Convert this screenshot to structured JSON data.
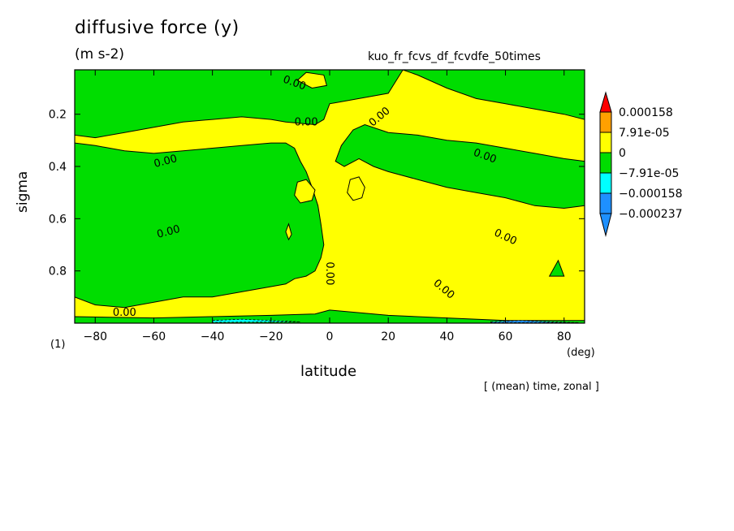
{
  "chart_data": {
    "type": "heatmap",
    "subtype": "filled-contour",
    "title": "diffusive force (y)",
    "units": "(m s-2)",
    "run_name": "kuo_fr_fcvs_df_fcvdfe_50times",
    "xlabel": "latitude",
    "x_unit": "(deg)",
    "ylabel": "sigma",
    "panel_index": "(1)",
    "note": "[ (mean) time, zonal ]",
    "xlim": [
      -87,
      87
    ],
    "ylim": [
      1.0,
      0.03
    ],
    "x_ticks": [
      -80,
      -60,
      -40,
      -20,
      0,
      20,
      40,
      60,
      80
    ],
    "x_tick_labels": [
      "−80",
      "−60",
      "−40",
      "−20",
      "0",
      "20",
      "40",
      "60",
      "80"
    ],
    "y_ticks": [
      0.2,
      0.4,
      0.6,
      0.8
    ],
    "y_tick_labels": [
      "0.2",
      "0.4",
      "0.6",
      "0.8"
    ],
    "contour_label": "0.00",
    "legend": {
      "placement": "right",
      "levels": [
        "0.000158",
        "7.91e-05",
        "0",
        "−7.91e-05",
        "−0.000158",
        "−0.000237"
      ],
      "colors": [
        "#ff0000",
        "#ffa000",
        "#ffff00",
        "#00dd00",
        "#00ffff",
        "#1e90ff"
      ]
    },
    "colors": {
      "positive_band": "#ffff00",
      "negative_band": "#00dd00",
      "cyan": "#00ffff",
      "blue": "#1e90ff"
    },
    "regions": {
      "green": [
        [
          [
            -87,
            0.03
          ],
          [
            -87,
            0.28
          ],
          [
            -80,
            0.29
          ],
          [
            -70,
            0.27
          ],
          [
            -60,
            0.25
          ],
          [
            -50,
            0.23
          ],
          [
            -40,
            0.22
          ],
          [
            -30,
            0.21
          ],
          [
            -20,
            0.22
          ],
          [
            -15,
            0.23
          ],
          [
            -10,
            0.235
          ],
          [
            -5,
            0.24
          ],
          [
            -2,
            0.22
          ],
          [
            0,
            0.16
          ],
          [
            5,
            0.15
          ],
          [
            10,
            0.14
          ],
          [
            20,
            0.12
          ],
          [
            25,
            0.03
          ]
        ],
        [
          [
            25,
            0.03
          ],
          [
            30,
            0.05
          ],
          [
            40,
            0.1
          ],
          [
            50,
            0.14
          ],
          [
            60,
            0.16
          ],
          [
            70,
            0.18
          ],
          [
            80,
            0.2
          ],
          [
            87,
            0.22
          ],
          [
            87,
            0.03
          ]
        ],
        [
          [
            -87,
            0.31
          ],
          [
            -80,
            0.32
          ],
          [
            -70,
            0.34
          ],
          [
            -60,
            0.35
          ],
          [
            -50,
            0.34
          ],
          [
            -40,
            0.33
          ],
          [
            -30,
            0.32
          ],
          [
            -20,
            0.31
          ],
          [
            -15,
            0.31
          ],
          [
            -12,
            0.33
          ],
          [
            -10,
            0.38
          ],
          [
            -8,
            0.42
          ],
          [
            -6,
            0.48
          ],
          [
            -4,
            0.55
          ],
          [
            -3,
            0.62
          ],
          [
            -2,
            0.7
          ],
          [
            -3,
            0.75
          ],
          [
            -5,
            0.8
          ],
          [
            -8,
            0.82
          ],
          [
            -12,
            0.83
          ],
          [
            -15,
            0.85
          ],
          [
            -20,
            0.86
          ],
          [
            -30,
            0.88
          ],
          [
            -40,
            0.9
          ],
          [
            -50,
            0.9
          ],
          [
            -60,
            0.92
          ],
          [
            -70,
            0.94
          ],
          [
            -80,
            0.93
          ],
          [
            -87,
            0.9
          ]
        ],
        [
          [
            2,
            0.38
          ],
          [
            4,
            0.32
          ],
          [
            8,
            0.26
          ],
          [
            12,
            0.24
          ],
          [
            20,
            0.27
          ],
          [
            30,
            0.28
          ],
          [
            40,
            0.3
          ],
          [
            50,
            0.31
          ],
          [
            60,
            0.33
          ],
          [
            70,
            0.35
          ],
          [
            80,
            0.37
          ],
          [
            87,
            0.38
          ],
          [
            87,
            0.55
          ],
          [
            80,
            0.56
          ],
          [
            70,
            0.55
          ],
          [
            60,
            0.52
          ],
          [
            50,
            0.5
          ],
          [
            40,
            0.48
          ],
          [
            30,
            0.45
          ],
          [
            20,
            0.42
          ],
          [
            15,
            0.4
          ],
          [
            10,
            0.37
          ],
          [
            5,
            0.4
          ]
        ],
        [
          [
            -87,
            0.975
          ],
          [
            -60,
            0.98
          ],
          [
            -40,
            0.975
          ],
          [
            -20,
            0.97
          ],
          [
            -5,
            0.965
          ],
          [
            0,
            0.95
          ],
          [
            10,
            0.96
          ],
          [
            20,
            0.97
          ],
          [
            40,
            0.98
          ],
          [
            60,
            0.99
          ],
          [
            87,
            0.99
          ],
          [
            87,
            1.0
          ],
          [
            -87,
            1.0
          ]
        ],
        [
          [
            75,
            0.82
          ],
          [
            78,
            0.76
          ],
          [
            80,
            0.82
          ]
        ]
      ],
      "yellow_islands": [
        [
          [
            -12,
            0.51
          ],
          [
            -11,
            0.46
          ],
          [
            -8,
            0.45
          ],
          [
            -5,
            0.49
          ],
          [
            -6,
            0.53
          ],
          [
            -10,
            0.54
          ]
        ],
        [
          [
            6,
            0.5
          ],
          [
            7,
            0.45
          ],
          [
            10,
            0.44
          ],
          [
            12,
            0.48
          ],
          [
            11,
            0.52
          ],
          [
            8,
            0.53
          ]
        ],
        [
          [
            -15,
            0.65
          ],
          [
            -14,
            0.62
          ],
          [
            -13,
            0.66
          ],
          [
            -14,
            0.68
          ]
        ],
        [
          [
            -11,
            0.07
          ],
          [
            -8,
            0.04
          ],
          [
            -2,
            0.05
          ],
          [
            -1,
            0.09
          ],
          [
            -6,
            0.1
          ]
        ]
      ],
      "cyan_strip": [
        [
          -40,
          0.99
        ],
        [
          -30,
          0.985
        ],
        [
          -20,
          0.99
        ],
        [
          -10,
          0.995
        ],
        [
          -40,
          0.997
        ]
      ],
      "blue_strip": [
        [
          55,
          0.995
        ],
        [
          65,
          0.99
        ],
        [
          75,
          0.995
        ],
        [
          85,
          0.998
        ],
        [
          55,
          0.998
        ]
      ]
    },
    "contour_label_positions": [
      {
        "lat": -12,
        "sigma": 0.08,
        "rot": 20
      },
      {
        "lat": -8,
        "sigma": 0.23,
        "rot": 0
      },
      {
        "lat": 17,
        "sigma": 0.21,
        "rot": -40
      },
      {
        "lat": -56,
        "sigma": 0.38,
        "rot": -15
      },
      {
        "lat": 53,
        "sigma": 0.36,
        "rot": 20
      },
      {
        "lat": -55,
        "sigma": 0.65,
        "rot": -15
      },
      {
        "lat": 60,
        "sigma": 0.67,
        "rot": 25
      },
      {
        "lat": 0,
        "sigma": 0.81,
        "rot": 90
      },
      {
        "lat": 39,
        "sigma": 0.87,
        "rot": 40
      },
      {
        "lat": -70,
        "sigma": 0.96,
        "rot": 0
      }
    ]
  }
}
